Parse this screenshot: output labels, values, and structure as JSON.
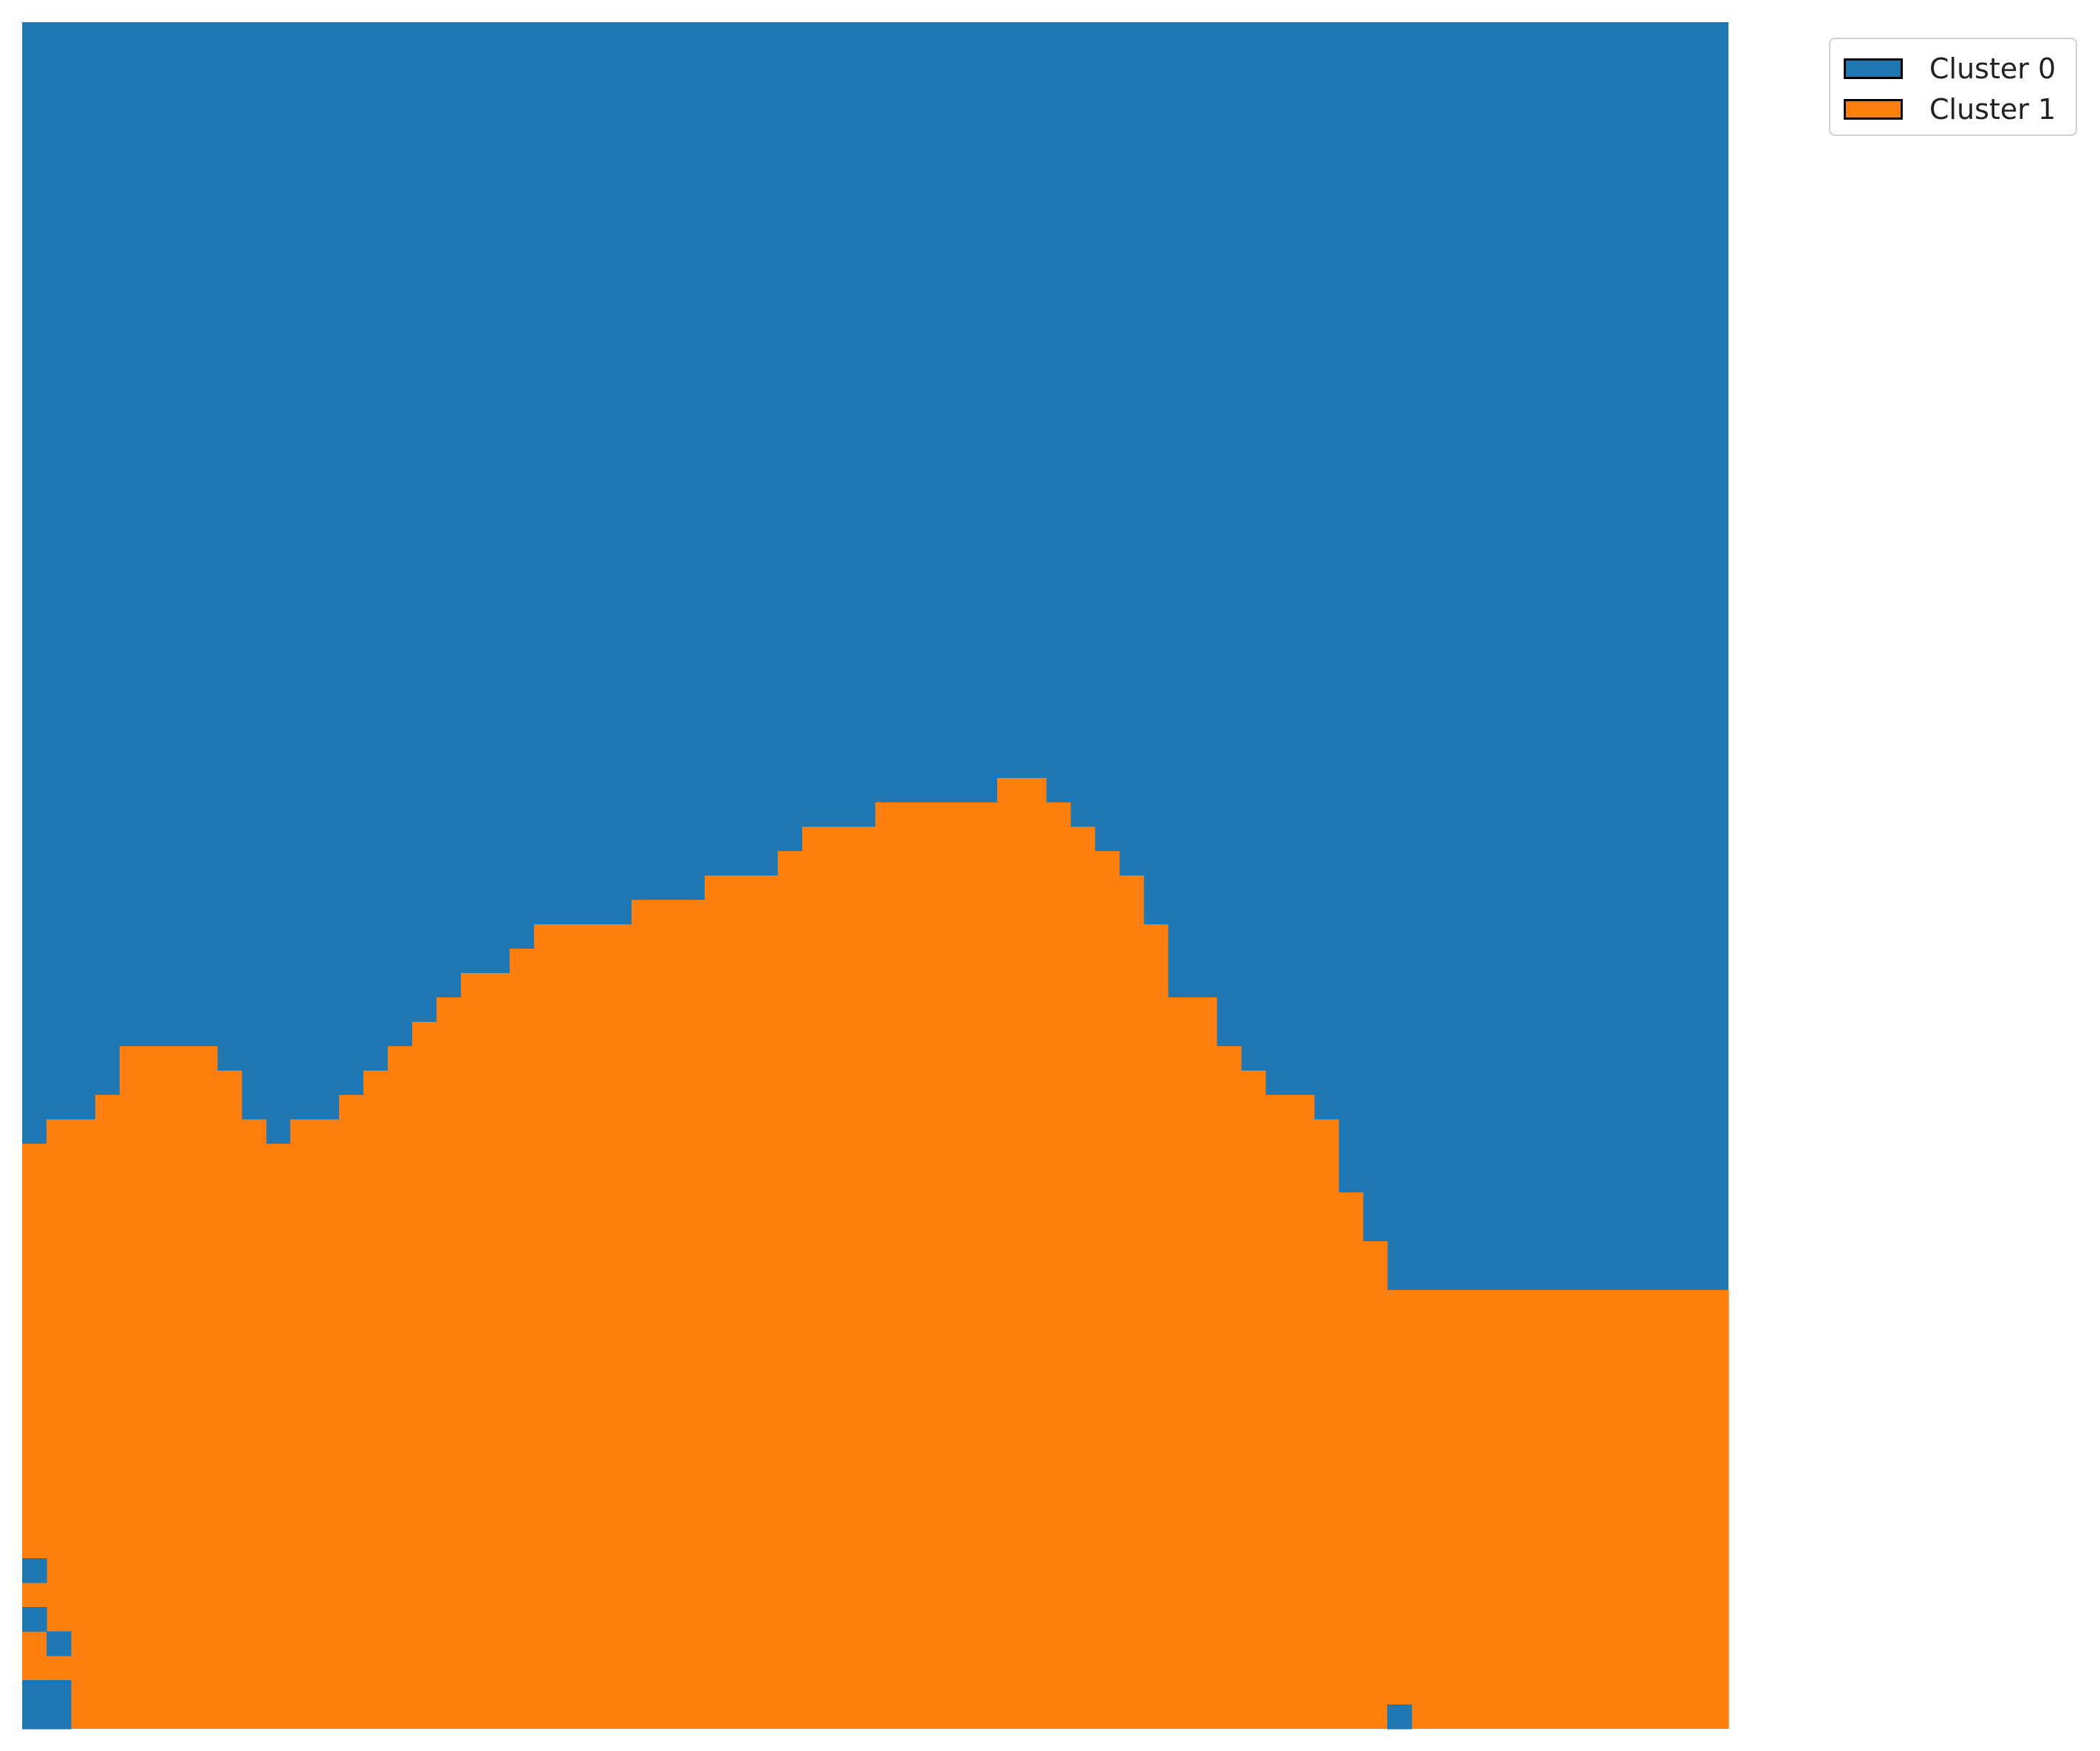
{
  "chart_data": {
    "type": "heatmap",
    "grid_size": 70,
    "title": "",
    "xlabel": "",
    "ylabel": "",
    "axes_visible": false,
    "legend_placement": "outside top-right",
    "categories": [
      {
        "name": "Cluster 0",
        "label": "Cluster 0",
        "color": "#1f77b4"
      },
      {
        "name": "Cluster 1",
        "label": "Cluster 1",
        "color": "#ff7f0e"
      }
    ],
    "boundary_heights": [
      24,
      25,
      25,
      26,
      28,
      28,
      28,
      28,
      27,
      25,
      24,
      25,
      25,
      26,
      27,
      28,
      29,
      30,
      31,
      31,
      32,
      33,
      33,
      33,
      33,
      34,
      34,
      34,
      35,
      35,
      35,
      36,
      37,
      37,
      37,
      38,
      38,
      38,
      38,
      38,
      39,
      39,
      38,
      37,
      36,
      35,
      33,
      30,
      30,
      28,
      27,
      26,
      26,
      25,
      22,
      20,
      18,
      18,
      18,
      18,
      18,
      18,
      18,
      18,
      18,
      18,
      18,
      18,
      18,
      18
    ],
    "irregular_cells": [
      {
        "col": 0,
        "row": 0,
        "cluster": 0
      },
      {
        "col": 0,
        "row": 1,
        "cluster": 0
      },
      {
        "col": 1,
        "row": 0,
        "cluster": 0
      },
      {
        "col": 1,
        "row": 1,
        "cluster": 0
      },
      {
        "col": 1,
        "row": 3,
        "cluster": 0
      },
      {
        "col": 0,
        "row": 4,
        "cluster": 0
      },
      {
        "col": 0,
        "row": 6,
        "cluster": 0
      },
      {
        "col": 56,
        "row": 0,
        "cluster": 0
      }
    ]
  }
}
